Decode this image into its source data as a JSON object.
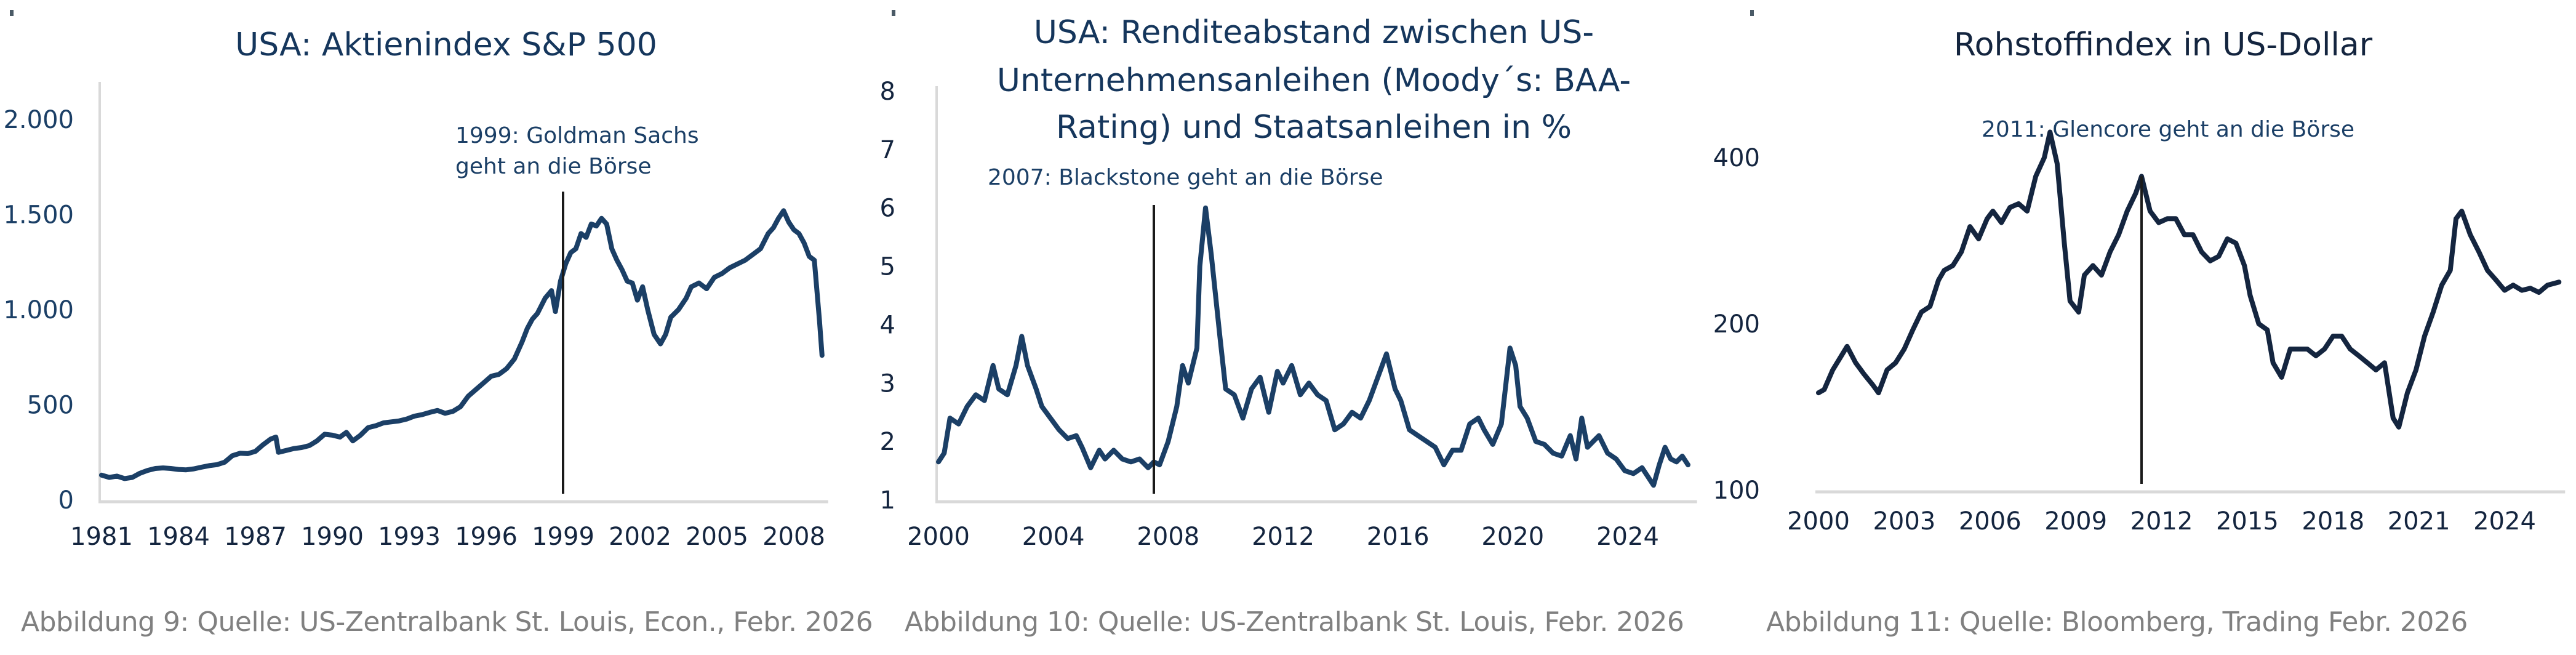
{
  "colors": {
    "title": "#15365c",
    "line_blue": "#1b3f66",
    "line_dark": "#14253f",
    "axis": "#d9d9d9",
    "marker": "#1a1a1a",
    "caption": "#808080",
    "tick_blue": "#1b3f66",
    "tick_dark": "#14253f"
  },
  "chart_data": [
    {
      "id": "sp500",
      "type": "line",
      "title": "USA: Aktienindex S&P 500",
      "xlabel": "",
      "ylabel": "",
      "xlim": [
        1981.0,
        2009.1
      ],
      "ylim": [
        0,
        2000
      ],
      "yscale": "linear",
      "grid": false,
      "legend": "none",
      "x_ticks": [
        1981,
        1984,
        1987,
        1990,
        1993,
        1996,
        1999,
        2002,
        2005,
        2008
      ],
      "x_tick_labels": [
        "1981",
        "1984",
        "1987",
        "1990",
        "1993",
        "1996",
        "1999",
        "2002",
        "2005",
        "2008"
      ],
      "y_ticks": [
        0,
        500,
        1000,
        1500,
        2000
      ],
      "y_tick_labels": [
        "0",
        "500",
        "1.000",
        "1.500",
        "2.000"
      ],
      "annotation": {
        "x": 1999.0,
        "y_from": 0,
        "y_to": 1620,
        "text_lines": [
          "1999: Goldman Sachs",
          "geht an die Börse"
        ]
      },
      "series": [
        {
          "name": "S&P 500",
          "x": [
            1981.0,
            1981.3,
            1981.6,
            1981.9,
            1982.2,
            1982.5,
            1982.8,
            1983.1,
            1983.4,
            1983.7,
            1984.0,
            1984.3,
            1984.6,
            1984.9,
            1985.2,
            1985.5,
            1985.8,
            1986.1,
            1986.4,
            1986.7,
            1987.0,
            1987.3,
            1987.6,
            1987.8,
            1987.9,
            1988.2,
            1988.5,
            1988.8,
            1989.1,
            1989.4,
            1989.7,
            1990.0,
            1990.3,
            1990.55,
            1990.8,
            1991.1,
            1991.4,
            1991.7,
            1992.0,
            1992.3,
            1992.6,
            1992.9,
            1993.2,
            1993.5,
            1993.8,
            1994.1,
            1994.4,
            1994.7,
            1995.0,
            1995.3,
            1995.6,
            1995.9,
            1996.2,
            1996.5,
            1996.8,
            1997.1,
            1997.4,
            1997.6,
            1997.8,
            1998.0,
            1998.3,
            1998.55,
            1998.7,
            1998.9,
            1999.1,
            1999.3,
            1999.5,
            1999.7,
            1999.9,
            2000.1,
            2000.3,
            2000.5,
            2000.7,
            2000.9,
            2001.1,
            2001.3,
            2001.5,
            2001.7,
            2001.9,
            2002.1,
            2002.3,
            2002.55,
            2002.8,
            2003.0,
            2003.2,
            2003.5,
            2003.8,
            2004.0,
            2004.3,
            2004.6,
            2004.9,
            2005.2,
            2005.5,
            2005.8,
            2006.1,
            2006.4,
            2006.7,
            2007.0,
            2007.2,
            2007.4,
            2007.6,
            2007.8,
            2008.0,
            2008.2,
            2008.4,
            2008.6,
            2008.8,
            2009.0,
            2009.1
          ],
          "values": [
            130,
            118,
            125,
            112,
            118,
            140,
            155,
            165,
            168,
            165,
            160,
            158,
            163,
            172,
            180,
            185,
            198,
            232,
            245,
            243,
            255,
            290,
            320,
            330,
            250,
            260,
            270,
            275,
            285,
            310,
            345,
            340,
            330,
            355,
            310,
            340,
            380,
            390,
            405,
            410,
            415,
            425,
            440,
            448,
            460,
            470,
            455,
            465,
            490,
            545,
            580,
            615,
            650,
            660,
            690,
            740,
            830,
            900,
            950,
            980,
            1060,
            1100,
            990,
            1150,
            1240,
            1300,
            1320,
            1400,
            1380,
            1450,
            1440,
            1480,
            1450,
            1320,
            1260,
            1210,
            1150,
            1140,
            1050,
            1120,
            1000,
            870,
            820,
            870,
            960,
            1000,
            1060,
            1120,
            1140,
            1110,
            1170,
            1190,
            1220,
            1240,
            1260,
            1290,
            1320,
            1400,
            1430,
            1480,
            1520,
            1460,
            1420,
            1400,
            1350,
            1280,
            1260,
            940,
            760
          ]
        }
      ],
      "caption": "Abbildung 9: Quelle: US-Zentralbank St. Louis, Econ., Febr. 2026"
    },
    {
      "id": "spread",
      "type": "line",
      "title_lines": [
        "USA: Renditeabstand zwischen US-",
        "Unternehmensanleihen (Moody´s: BAA-",
        "Rating) und Staatsanleihen in %"
      ],
      "xlabel": "",
      "ylabel": "",
      "xlim": [
        2000.0,
        2026.2
      ],
      "ylim": [
        1,
        8
      ],
      "yscale": "linear",
      "grid": false,
      "legend": "none",
      "x_ticks": [
        2000,
        2004,
        2008,
        2012,
        2016,
        2020,
        2024
      ],
      "x_tick_labels": [
        "2000",
        "2004",
        "2008",
        "2012",
        "2016",
        "2020",
        "2024"
      ],
      "y_ticks": [
        1,
        2,
        3,
        4,
        5,
        6,
        7,
        8
      ],
      "y_tick_labels": [
        "1",
        "2",
        "3",
        "4",
        "5",
        "6",
        "7",
        "8"
      ],
      "annotation": {
        "x": 2007.5,
        "y_from": 1.0,
        "y_to": 6.05,
        "text_lines": [
          "2007: Blackstone geht an die Börse"
        ]
      },
      "series": [
        {
          "name": "BAA - Treasury spread",
          "x": [
            2000.0,
            2000.2,
            2000.4,
            2000.7,
            2001.0,
            2001.3,
            2001.6,
            2001.9,
            2002.1,
            2002.4,
            2002.7,
            2002.9,
            2003.1,
            2003.4,
            2003.6,
            2003.9,
            2004.2,
            2004.5,
            2004.8,
            2005.0,
            2005.3,
            2005.6,
            2005.8,
            2006.1,
            2006.4,
            2006.7,
            2007.0,
            2007.3,
            2007.5,
            2007.7,
            2008.0,
            2008.3,
            2008.5,
            2008.7,
            2008.85,
            2009.0,
            2009.1,
            2009.3,
            2009.5,
            2009.8,
            2010.0,
            2010.3,
            2010.6,
            2010.9,
            2011.2,
            2011.5,
            2011.8,
            2012.0,
            2012.3,
            2012.6,
            2012.9,
            2013.2,
            2013.5,
            2013.8,
            2014.1,
            2014.4,
            2014.7,
            2015.0,
            2015.3,
            2015.6,
            2015.9,
            2016.1,
            2016.4,
            2016.7,
            2017.0,
            2017.3,
            2017.6,
            2017.9,
            2018.2,
            2018.5,
            2018.8,
            2019.0,
            2019.3,
            2019.6,
            2019.9,
            2020.1,
            2020.25,
            2020.5,
            2020.8,
            2021.1,
            2021.4,
            2021.7,
            2022.0,
            2022.2,
            2022.4,
            2022.6,
            2022.8,
            2023.0,
            2023.3,
            2023.6,
            2023.9,
            2024.2,
            2024.5,
            2024.7,
            2024.9,
            2025.1,
            2025.3,
            2025.5,
            2025.7,
            2025.9,
            2026.1
          ],
          "values": [
            1.65,
            1.8,
            2.4,
            2.3,
            2.6,
            2.8,
            2.7,
            3.3,
            2.9,
            2.8,
            3.3,
            3.8,
            3.3,
            2.9,
            2.6,
            2.4,
            2.2,
            2.05,
            2.1,
            1.9,
            1.55,
            1.85,
            1.7,
            1.85,
            1.7,
            1.65,
            1.7,
            1.55,
            1.65,
            1.6,
            2.0,
            2.6,
            3.3,
            3.0,
            3.3,
            3.6,
            5.0,
            6.0,
            5.2,
            3.8,
            2.9,
            2.8,
            2.4,
            2.9,
            3.1,
            2.5,
            3.2,
            3.0,
            3.3,
            2.8,
            3.0,
            2.8,
            2.7,
            2.2,
            2.3,
            2.5,
            2.4,
            2.7,
            3.1,
            3.5,
            2.9,
            2.7,
            2.2,
            2.1,
            2.0,
            1.9,
            1.6,
            1.85,
            1.85,
            2.3,
            2.4,
            2.2,
            1.95,
            2.3,
            3.6,
            3.3,
            2.6,
            2.4,
            2.0,
            1.95,
            1.8,
            1.75,
            2.1,
            1.7,
            2.4,
            1.9,
            2.0,
            2.1,
            1.8,
            1.7,
            1.5,
            1.45,
            1.55,
            1.4,
            1.25,
            1.6,
            1.9,
            1.7,
            1.65,
            1.75,
            1.6
          ]
        }
      ],
      "caption": "Abbildung 10: Quelle: US-Zentralbank St. Louis, Febr. 2026"
    },
    {
      "id": "commodity",
      "type": "line",
      "title": "Rohstoffindex in US-Dollar",
      "xlabel": "",
      "ylabel": "",
      "xlim": [
        2000.0,
        2025.9
      ],
      "ylim": [
        100,
        480
      ],
      "yscale": "log",
      "grid": false,
      "legend": "none",
      "x_ticks": [
        2000,
        2003,
        2006,
        2009,
        2012,
        2015,
        2018,
        2021,
        2024
      ],
      "x_tick_labels": [
        "2000",
        "2003",
        "2006",
        "2009",
        "2012",
        "2015",
        "2018",
        "2021",
        "2024"
      ],
      "y_ticks": [
        100,
        200,
        400
      ],
      "y_tick_labels": [
        "100",
        "200",
        "400"
      ],
      "annotation": {
        "x": 2011.3,
        "y_from": 100,
        "y_to": 370,
        "text_lines": [
          "2011: Glencore geht an die Börse"
        ]
      },
      "series": [
        {
          "name": "Rohstoffindex",
          "x": [
            2000.0,
            2000.2,
            2000.5,
            2000.8,
            2001.0,
            2001.3,
            2001.6,
            2001.9,
            2002.1,
            2002.4,
            2002.7,
            2003.0,
            2003.3,
            2003.6,
            2003.9,
            2004.2,
            2004.4,
            2004.7,
            2005.0,
            2005.3,
            2005.6,
            2005.9,
            2006.1,
            2006.4,
            2006.7,
            2007.0,
            2007.3,
            2007.6,
            2007.9,
            2008.1,
            2008.35,
            2008.6,
            2008.8,
            2009.1,
            2009.3,
            2009.6,
            2009.9,
            2010.2,
            2010.5,
            2010.8,
            2011.1,
            2011.3,
            2011.6,
            2011.9,
            2012.2,
            2012.5,
            2012.8,
            2013.1,
            2013.4,
            2013.7,
            2014.0,
            2014.3,
            2014.6,
            2014.9,
            2015.1,
            2015.4,
            2015.7,
            2015.9,
            2016.2,
            2016.5,
            2016.8,
            2017.1,
            2017.4,
            2017.7,
            2018.0,
            2018.3,
            2018.6,
            2018.9,
            2019.2,
            2019.5,
            2019.8,
            2020.1,
            2020.3,
            2020.6,
            2020.9,
            2021.2,
            2021.5,
            2021.8,
            2022.1,
            2022.3,
            2022.5,
            2022.8,
            2023.1,
            2023.4,
            2023.7,
            2024.0,
            2024.3,
            2024.6,
            2024.9,
            2025.2,
            2025.5,
            2025.9
          ],
          "values": [
            150,
            152,
            165,
            175,
            182,
            170,
            162,
            155,
            150,
            165,
            170,
            180,
            195,
            210,
            215,
            240,
            250,
            255,
            270,
            300,
            285,
            310,
            320,
            305,
            325,
            330,
            320,
            370,
            400,
            445,
            390,
            280,
            220,
            210,
            245,
            255,
            245,
            270,
            290,
            320,
            345,
            370,
            320,
            305,
            310,
            310,
            290,
            290,
            270,
            260,
            265,
            285,
            280,
            255,
            225,
            200,
            195,
            170,
            160,
            180,
            180,
            180,
            175,
            180,
            190,
            190,
            180,
            175,
            170,
            165,
            170,
            135,
            130,
            150,
            165,
            190,
            210,
            235,
            250,
            310,
            320,
            290,
            270,
            250,
            240,
            230,
            235,
            230,
            232,
            228,
            235,
            238
          ]
        }
      ],
      "caption": "Abbildung 11: Quelle: Bloomberg, Trading Febr. 2026"
    }
  ]
}
